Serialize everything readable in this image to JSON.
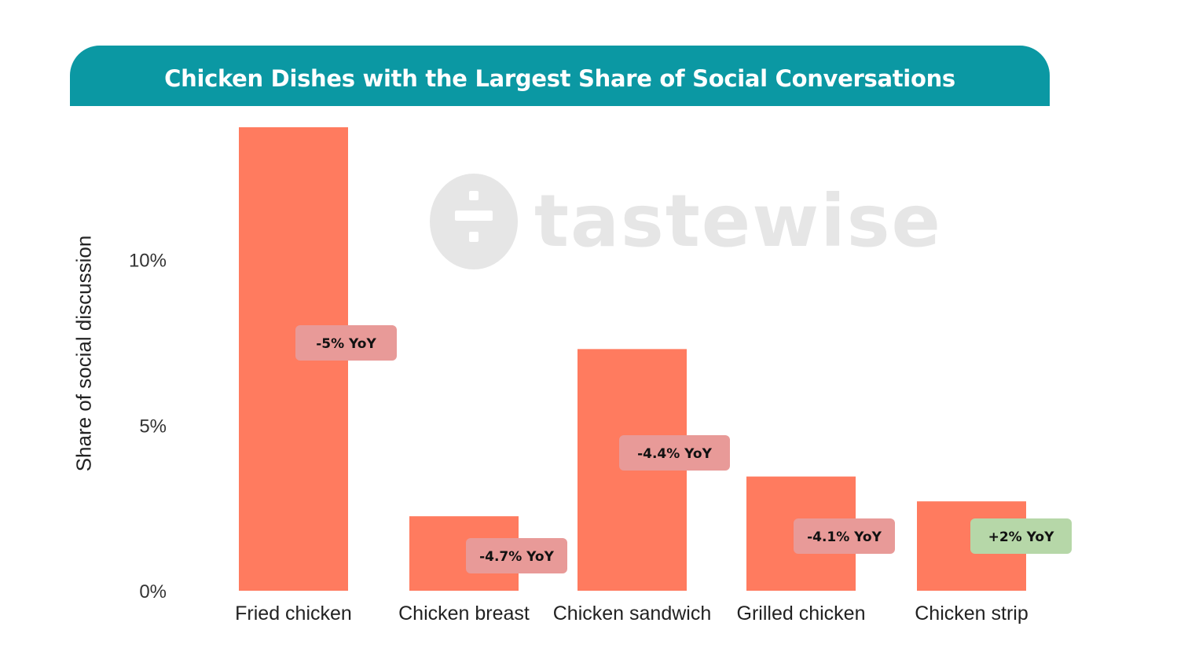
{
  "title": "Chicken Dishes with the Largest Share of Social Conversations",
  "watermark": {
    "text": "tastewise"
  },
  "colors": {
    "banner": "#0b98a3",
    "bar": "#ff7b5f",
    "badge_negative": "#e89a98",
    "badge_positive": "#b6d7a8",
    "watermark": "#e6e6e6"
  },
  "chart_data": {
    "type": "bar",
    "title": "Chicken Dishes with the Largest Share of Social Conversations",
    "xlabel": "",
    "ylabel": "Share of social discussion",
    "categories": [
      "Fried chicken",
      "Chicken breast",
      "Chicken sandwich",
      "Grilled chicken",
      "Chicken strip"
    ],
    "values": [
      14.0,
      2.25,
      7.3,
      3.45,
      2.7
    ],
    "yoy_labels": [
      "-5% YoY",
      "-4.7% YoY",
      "-4.4% YoY",
      "-4.1% YoY",
      "+2% YoY"
    ],
    "yoy_values": [
      -5,
      -4.7,
      -4.4,
      -4.1,
      2
    ],
    "ylim": [
      0,
      14
    ],
    "yticks": [
      0,
      5,
      10
    ],
    "ytick_labels": [
      "0%",
      "5%",
      "10%"
    ],
    "grid": false,
    "legend": "none"
  }
}
